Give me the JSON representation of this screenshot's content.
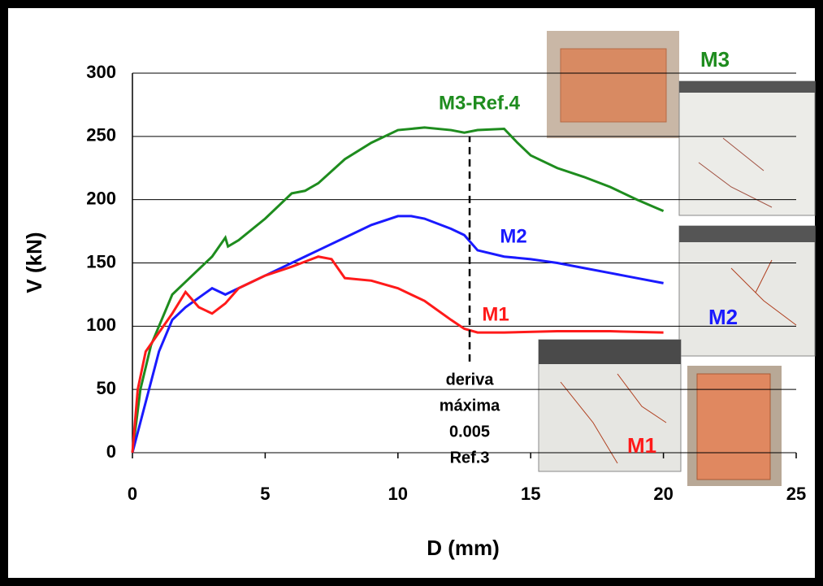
{
  "chart_data": {
    "type": "line",
    "xlabel": "D (mm)",
    "ylabel": "V (kN)",
    "xlim": [
      0,
      25
    ],
    "xticks": [
      0,
      5,
      10,
      15,
      20,
      25
    ],
    "ylim": [
      0,
      300
    ],
    "yticks": [
      0,
      50,
      100,
      150,
      200,
      250,
      300
    ],
    "grid": true,
    "series": [
      {
        "name": "M3-Ref.4",
        "color": "#1e8c1e",
        "x": [
          0,
          0.3,
          0.7,
          1,
          1.5,
          2,
          3,
          3.5,
          3.6,
          4,
          5,
          6,
          6.5,
          7,
          8,
          9,
          10,
          11,
          12,
          12.5,
          13,
          14,
          14.5,
          15,
          16,
          17,
          18,
          19,
          20
        ],
        "values": [
          0,
          50,
          85,
          100,
          125,
          135,
          155,
          170,
          163,
          168,
          185,
          205,
          207,
          213,
          232,
          245,
          255,
          257,
          255,
          253,
          255,
          256,
          245,
          235,
          225,
          218,
          210,
          200,
          191
        ]
      },
      {
        "name": "M2",
        "color": "#1a1aff",
        "x": [
          0,
          0.5,
          1,
          1.5,
          2,
          3,
          3.5,
          4,
          5,
          6,
          7,
          8,
          9,
          10,
          10.5,
          11,
          12,
          12.5,
          13,
          14,
          15,
          16,
          17,
          18,
          19,
          20
        ],
        "values": [
          0,
          40,
          80,
          105,
          115,
          130,
          125,
          130,
          140,
          150,
          160,
          170,
          180,
          187,
          187,
          185,
          177,
          172,
          160,
          155,
          153,
          150,
          146,
          142,
          138,
          134
        ]
      },
      {
        "name": "M1",
        "color": "#ff1a1a",
        "x": [
          0,
          0.2,
          0.5,
          1,
          1.5,
          2,
          2.5,
          3,
          3.5,
          4,
          5,
          6,
          7,
          7.5,
          8,
          9,
          10,
          11,
          12,
          12.5,
          13,
          14,
          16,
          18,
          20
        ],
        "values": [
          0,
          50,
          80,
          95,
          110,
          127,
          115,
          110,
          118,
          130,
          140,
          147,
          155,
          153,
          138,
          136,
          130,
          120,
          105,
          98,
          95,
          95,
          96,
          96,
          95
        ]
      }
    ],
    "vline": {
      "x": 12.7,
      "y": [
        72,
        250
      ]
    },
    "vline_annotation": [
      "deriva",
      "máxima",
      "0.005",
      "Ref.3"
    ],
    "photo_labels": [
      "M3",
      "M2",
      "M1"
    ]
  }
}
